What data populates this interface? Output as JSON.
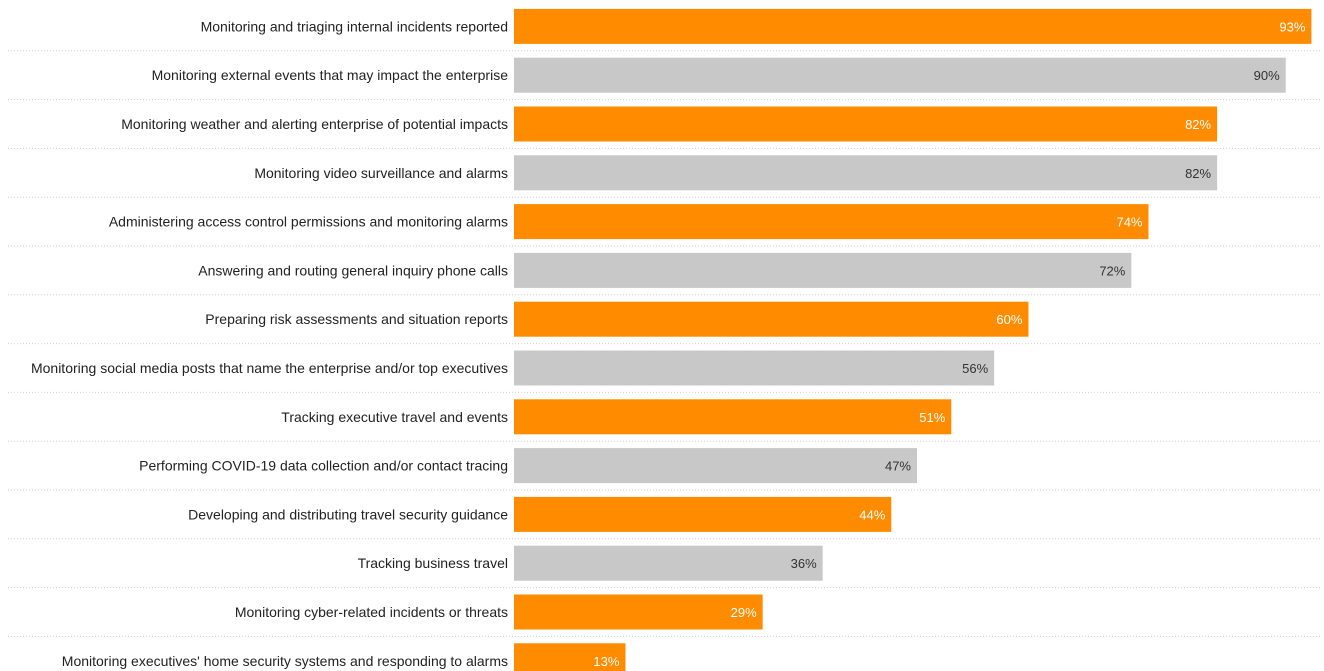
{
  "chart_data": {
    "type": "bar",
    "orientation": "horizontal",
    "categories": [
      "Monitoring and triaging internal incidents reported",
      "Monitoring external events that may impact the enterprise",
      "Monitoring weather and alerting enterprise of potential impacts",
      "Monitoring video surveillance and alarms",
      "Administering access control permissions and monitoring alarms",
      "Answering and routing general inquiry phone calls",
      "Preparing risk assessments and situation reports",
      "Monitoring social media posts that name the enterprise and/or top executives",
      "Tracking executive travel and events",
      "Performing COVID-19 data collection and/or contact tracing",
      "Developing and distributing travel security guidance",
      "Tracking business travel",
      "Monitoring cyber-related incidents or threats",
      "Monitoring executives' home security systems and responding to alarms"
    ],
    "values": [
      93,
      90,
      82,
      82,
      74,
      72,
      60,
      56,
      51,
      47,
      44,
      36,
      29,
      13
    ],
    "value_labels": [
      "93%",
      "90%",
      "82%",
      "82%",
      "74%",
      "72%",
      "60%",
      "56%",
      "51%",
      "47%",
      "44%",
      "36%",
      "29%",
      "13%"
    ],
    "xlim": [
      0,
      94
    ],
    "bar_colors": [
      "#ff8c00",
      "#c8c8c8",
      "#ff8c00",
      "#c8c8c8",
      "#ff8c00",
      "#c8c8c8",
      "#ff8c00",
      "#c8c8c8",
      "#ff8c00",
      "#c8c8c8",
      "#ff8c00",
      "#c8c8c8",
      "#ff8c00",
      "#ff8c00"
    ],
    "label_colors": [
      "#ffffff",
      "#333333",
      "#ffffff",
      "#333333",
      "#ffffff",
      "#333333",
      "#ffffff",
      "#333333",
      "#ffffff",
      "#333333",
      "#ffffff",
      "#333333",
      "#ffffff",
      "#ffffff"
    ],
    "grid": false,
    "legend": "none"
  }
}
